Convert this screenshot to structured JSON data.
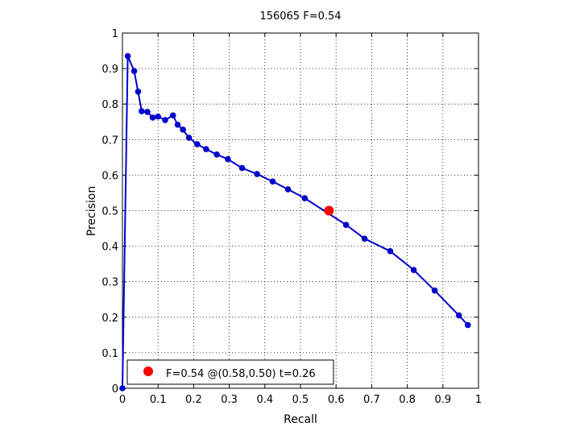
{
  "chart_data": {
    "type": "line",
    "title": "156065 F=0.54",
    "xlabel": "Recall",
    "ylabel": "Precision",
    "xlim": [
      0,
      1
    ],
    "ylim": [
      0,
      1
    ],
    "grid": true,
    "legend_position": "bottom-left",
    "x_ticks": [
      "0",
      "0.1",
      "0.2",
      "0.3",
      "0.4",
      "0.5",
      "0.6",
      "0.7",
      "0.8",
      "0.9",
      "1"
    ],
    "y_ticks": [
      "0",
      "0.1",
      "0.2",
      "0.3",
      "0.4",
      "0.5",
      "0.6",
      "0.7",
      "0.8",
      "0.9",
      "1"
    ],
    "series": [
      {
        "color": "#0000cc",
        "marker": "circle",
        "x": [
          0.0,
          0.015,
          0.033,
          0.044,
          0.054,
          0.07,
          0.085,
          0.1,
          0.12,
          0.142,
          0.155,
          0.17,
          0.187,
          0.21,
          0.235,
          0.265,
          0.296,
          0.336,
          0.378,
          0.422,
          0.465,
          0.512,
          0.628,
          0.68,
          0.752,
          0.818,
          0.877,
          0.945,
          0.97
        ],
        "y": [
          0.0,
          0.935,
          0.893,
          0.835,
          0.78,
          0.778,
          0.762,
          0.765,
          0.755,
          0.768,
          0.742,
          0.728,
          0.705,
          0.687,
          0.673,
          0.658,
          0.645,
          0.62,
          0.603,
          0.582,
          0.56,
          0.535,
          0.46,
          0.421,
          0.386,
          0.333,
          0.275,
          0.205,
          0.178
        ]
      }
    ],
    "highlight": {
      "x": 0.58,
      "y": 0.5,
      "color": "#ff0000",
      "label": "F=0.54 @(0.58,0.50) t=0.26"
    }
  }
}
